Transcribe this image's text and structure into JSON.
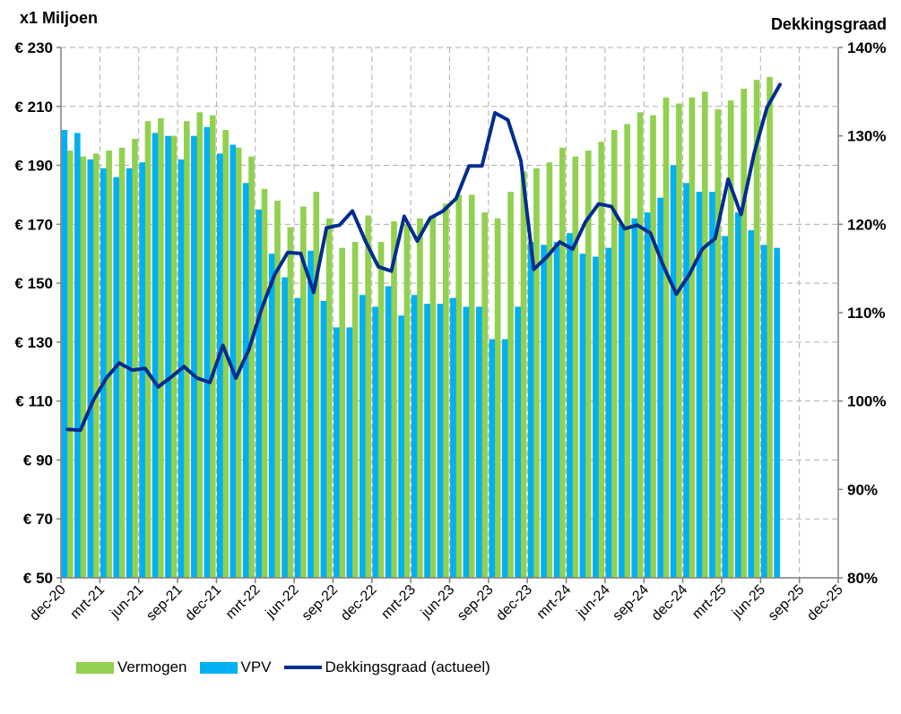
{
  "chart_data": {
    "type": "bar+line",
    "title_left": "x1 Miljoen",
    "title_right": "Dekkingsgraad",
    "categories": [
      "dec-20",
      "jan-21",
      "feb-21",
      "mrt-21",
      "apr-21",
      "mei-21",
      "jun-21",
      "jul-21",
      "aug-21",
      "sep-21",
      "okt-21",
      "nov-21",
      "dec-21",
      "jan-22",
      "feb-22",
      "mrt-22",
      "apr-22",
      "mei-22",
      "jun-22",
      "jul-22",
      "aug-22",
      "sep-22",
      "okt-22",
      "nov-22",
      "dec-22",
      "jan-23",
      "feb-23",
      "mrt-23",
      "apr-23",
      "mei-23",
      "jun-23",
      "jul-23",
      "aug-23",
      "sep-23",
      "okt-23",
      "nov-23",
      "dec-23",
      "jan-24",
      "feb-24",
      "mrt-24",
      "apr-24",
      "mei-24",
      "jun-24",
      "jul-24",
      "aug-24",
      "sep-24",
      "okt-24",
      "nov-24",
      "dec-24",
      "jan-25",
      "feb-25",
      "mrt-25",
      "apr-25",
      "mei-25",
      "jun-25",
      "jul-25",
      "aug-25",
      "sep-25",
      "okt-25",
      "nov-25",
      "dec-25"
    ],
    "x_tick_labels": [
      "dec-20",
      "mrt-21",
      "jun-21",
      "sep-21",
      "dec-21",
      "mrt-22",
      "jun-22",
      "sep-22",
      "dec-22",
      "mrt-23",
      "jun-23",
      "sep-23",
      "dec-23",
      "mrt-24",
      "jun-24",
      "sep-24",
      "dec-24",
      "mrt-25",
      "jun-25",
      "sep-25",
      "dec-25"
    ],
    "series": [
      {
        "name": "Vermogen",
        "axis": "left",
        "type": "bar",
        "color": "#92d050",
        "values": [
          195,
          193,
          194,
          195,
          196,
          199,
          205,
          206,
          200,
          205,
          208,
          207,
          202,
          196,
          193,
          182,
          178,
          169,
          176,
          181,
          172,
          162,
          164,
          173,
          164,
          171,
          170,
          172,
          173,
          177,
          180,
          180,
          174,
          172,
          181,
          188,
          189,
          191,
          196,
          193,
          195,
          198,
          202,
          204,
          208,
          207,
          213,
          211,
          213,
          215,
          209,
          212,
          216,
          219,
          220,
          null,
          null,
          null,
          null,
          null,
          null
        ]
      },
      {
        "name": "VPV",
        "axis": "left",
        "type": "bar",
        "color": "#00b0f0",
        "values": [
          202,
          201,
          192,
          189,
          186,
          189,
          191,
          201,
          200,
          192,
          200,
          203,
          194,
          197,
          184,
          175,
          160,
          152,
          145,
          161,
          144,
          135,
          135,
          146,
          142,
          149,
          139,
          146,
          143,
          143,
          145,
          142,
          142,
          131,
          131,
          142,
          164,
          163,
          164,
          167,
          160,
          159,
          162,
          170,
          172,
          174,
          179,
          190,
          184,
          181,
          181,
          166,
          174,
          168,
          163,
          162,
          null,
          null,
          null,
          null,
          null
        ]
      },
      {
        "name": "Dekkingsgraad (actueel)",
        "axis": "right",
        "type": "line",
        "color": "#002d8f",
        "values": [
          96.8,
          96.7,
          100.1,
          102.6,
          104.3,
          103.5,
          103.7,
          101.6,
          102.7,
          103.9,
          102.6,
          102.1,
          106.3,
          102.6,
          105.8,
          110.5,
          114.3,
          116.8,
          116.7,
          112.3,
          119.6,
          119.9,
          121.5,
          118.1,
          115.2,
          114.7,
          120.9,
          118.1,
          120.7,
          121.5,
          122.9,
          126.6,
          126.6,
          132.6,
          131.8,
          127.2,
          114.9,
          116.3,
          118.0,
          117.2,
          120.3,
          122.3,
          122.0,
          119.5,
          119.9,
          119.0,
          115.3,
          112.1,
          114.3,
          117.2,
          118.4,
          125.1,
          121.1,
          128.0,
          133.2,
          135.8,
          null,
          null,
          null,
          null,
          null
        ]
      }
    ],
    "ylim_left": [
      50,
      230
    ],
    "yticks_left": [
      50,
      70,
      90,
      110,
      130,
      150,
      170,
      190,
      210,
      230
    ],
    "ytick_labels_left": [
      "€ 50",
      "€ 70",
      "€ 90",
      "€ 110",
      "€ 130",
      "€ 150",
      "€ 170",
      "€ 190",
      "€ 210",
      "€ 230"
    ],
    "ylim_right": [
      80,
      140
    ],
    "yticks_right": [
      80,
      90,
      100,
      110,
      120,
      130,
      140
    ],
    "ytick_labels_right": [
      "80%",
      "90%",
      "100%",
      "110%",
      "120%",
      "130%",
      "140%"
    ],
    "grid": true,
    "legend_position": "bottom"
  },
  "legend": {
    "vermogen": "Vermogen",
    "vpv": "VPV",
    "dekkingsgraad": "Dekkingsgraad (actueel)"
  },
  "colors": {
    "vermogen": "#92d050",
    "vpv": "#00b0f0",
    "dekkingsgraad": "#002d8f",
    "grid": "#b0b0b0",
    "axis": "#808080"
  }
}
